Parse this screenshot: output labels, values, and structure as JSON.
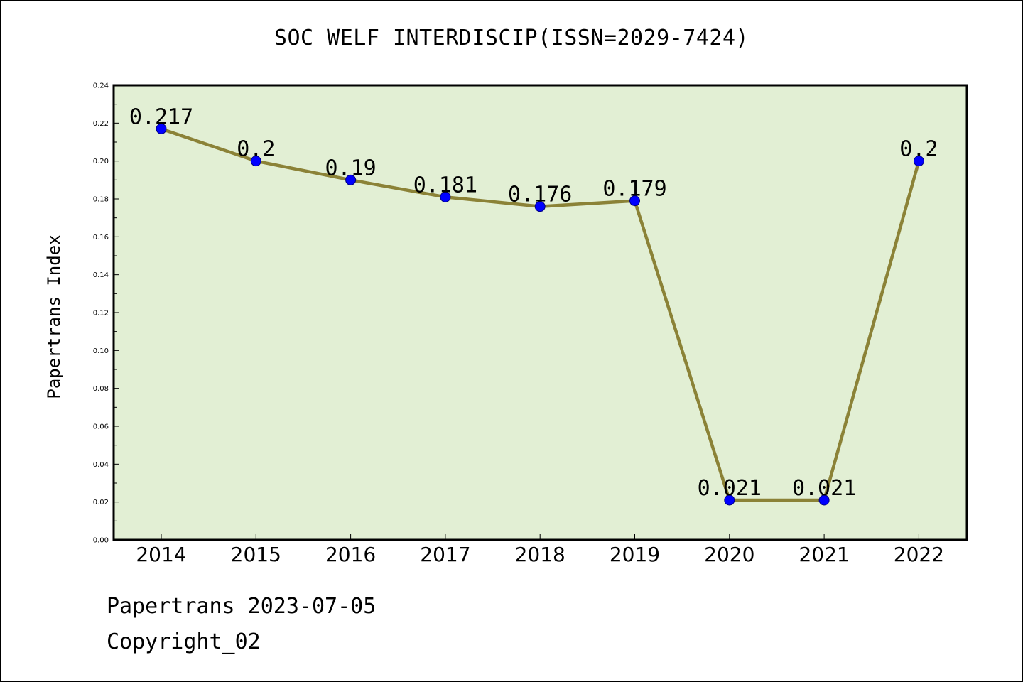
{
  "colors": {
    "plot_background": "#e2efd4",
    "line": "#8b8237",
    "marker": "#0000ff",
    "marker_edge": "#000080",
    "axis": "#000000"
  },
  "chart_data": {
    "type": "line",
    "title": "SOC WELF INTERDISCIP(ISSN=2029-7424)",
    "xlabel": "",
    "ylabel": "Papertrans Index",
    "categories": [
      "2014",
      "2015",
      "2016",
      "2017",
      "2018",
      "2019",
      "2020",
      "2021",
      "2022"
    ],
    "series": [
      {
        "values": [
          0.217,
          0.2,
          0.19,
          0.181,
          0.176,
          0.179,
          0.021,
          0.021,
          0.2
        ],
        "data_labels": [
          "0.217",
          "0.2",
          "0.19",
          "0.181",
          "0.176",
          "0.179",
          "0.021",
          "0.021",
          "0.2"
        ]
      }
    ],
    "ylim": [
      0,
      0.24
    ],
    "yticks": [
      "0.00",
      "0.02",
      "0.04",
      "0.06",
      "0.08",
      "0.10",
      "0.12",
      "0.14",
      "0.16",
      "0.18",
      "0.20",
      "0.22",
      "0.24"
    ],
    "grid": false,
    "legend": "none"
  },
  "footer": {
    "date_text": "Papertrans 2023-07-05",
    "copyright_text": "Copyright_02"
  }
}
